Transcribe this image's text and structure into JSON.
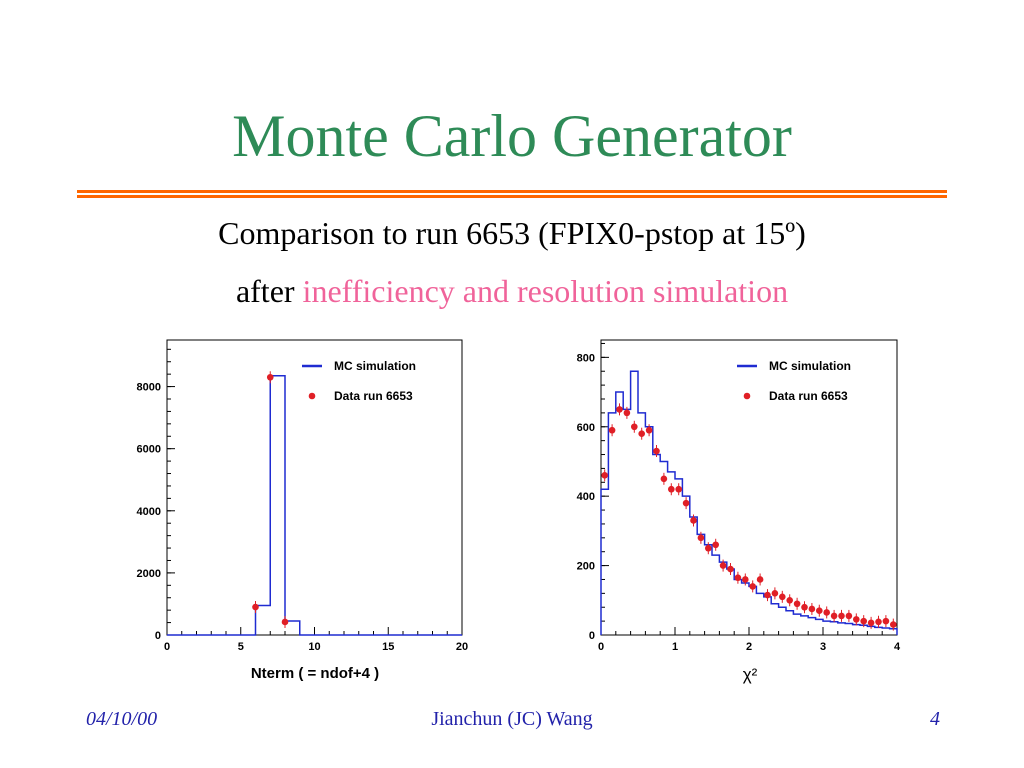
{
  "slide": {
    "title": "Monte Carlo Generator",
    "subtitle_line1": "Comparison to run 6653  (FPIX0-pstop at 15º)",
    "subtitle_line2_prefix": "after",
    "subtitle_line2_highlight": "inefficiency and resolution simulation",
    "colors": {
      "title": "#2e8b57",
      "rule": "#ff6600",
      "highlight": "#f0639a",
      "footer": "#2222aa"
    }
  },
  "footer": {
    "date": "04/10/00",
    "author": "Jianchun (JC) Wang",
    "page": "4"
  },
  "chart_data": [
    {
      "type": "bar",
      "xlabel": "Nterm ( = ndof+4 )",
      "ylabel": "",
      "xlim": [
        0,
        20
      ],
      "ylim": [
        0,
        9500
      ],
      "x_ticks": [
        0,
        5,
        10,
        15,
        20
      ],
      "y_ticks": [
        0,
        2000,
        4000,
        6000,
        8000
      ],
      "legend_position": "top-right",
      "series": [
        {
          "name": "MC simulation",
          "kind": "step-histogram",
          "color": "#1f2bd1",
          "bin_edges": [
            0,
            1,
            2,
            3,
            4,
            5,
            6,
            7,
            8,
            9,
            10,
            11,
            12,
            13,
            14,
            15,
            16,
            17,
            18,
            19,
            20
          ],
          "values": [
            0,
            0,
            0,
            0,
            0,
            0,
            950,
            8350,
            450,
            0,
            0,
            0,
            0,
            0,
            0,
            0,
            0,
            0,
            0,
            0
          ]
        },
        {
          "name": "Data run 6653",
          "kind": "points",
          "color": "#e01f26",
          "x": [
            6,
            7,
            8
          ],
          "y": [
            900,
            8300,
            420
          ]
        }
      ]
    },
    {
      "type": "bar",
      "xlabel": "χ²",
      "ylabel": "",
      "xlim": [
        0,
        4
      ],
      "ylim": [
        0,
        850
      ],
      "x_ticks": [
        0,
        1,
        2,
        3,
        4
      ],
      "y_ticks": [
        0,
        200,
        400,
        600,
        800
      ],
      "legend_position": "top-right",
      "series": [
        {
          "name": "MC simulation",
          "kind": "step-histogram",
          "color": "#1f2bd1",
          "bin_edges": [
            0,
            0.1,
            0.2,
            0.3,
            0.4,
            0.5,
            0.6,
            0.7,
            0.8,
            0.9,
            1.0,
            1.1,
            1.2,
            1.3,
            1.4,
            1.5,
            1.6,
            1.7,
            1.8,
            1.9,
            2.0,
            2.1,
            2.2,
            2.3,
            2.4,
            2.5,
            2.6,
            2.7,
            2.8,
            2.9,
            3.0,
            3.1,
            3.2,
            3.3,
            3.4,
            3.5,
            3.6,
            3.7,
            3.8,
            3.9,
            4.0
          ],
          "values": [
            420,
            640,
            700,
            650,
            760,
            640,
            600,
            520,
            500,
            470,
            450,
            400,
            340,
            290,
            260,
            230,
            210,
            190,
            160,
            150,
            140,
            120,
            110,
            90,
            80,
            70,
            60,
            55,
            50,
            45,
            40,
            38,
            35,
            33,
            30,
            28,
            25,
            22,
            20,
            18
          ]
        },
        {
          "name": "Data run 6653",
          "kind": "points",
          "color": "#e01f26",
          "x": [
            0.05,
            0.15,
            0.25,
            0.35,
            0.45,
            0.55,
            0.65,
            0.75,
            0.85,
            0.95,
            1.05,
            1.15,
            1.25,
            1.35,
            1.45,
            1.55,
            1.65,
            1.75,
            1.85,
            1.95,
            2.05,
            2.15,
            2.25,
            2.35,
            2.45,
            2.55,
            2.65,
            2.75,
            2.85,
            2.95,
            3.05,
            3.15,
            3.25,
            3.35,
            3.45,
            3.55,
            3.65,
            3.75,
            3.85,
            3.95
          ],
          "y": [
            460,
            590,
            650,
            640,
            600,
            580,
            590,
            530,
            450,
            420,
            420,
            380,
            330,
            280,
            250,
            260,
            200,
            190,
            165,
            160,
            140,
            160,
            115,
            120,
            110,
            100,
            90,
            80,
            75,
            70,
            65,
            55,
            55,
            55,
            45,
            40,
            35,
            38,
            40,
            30
          ]
        }
      ]
    }
  ]
}
